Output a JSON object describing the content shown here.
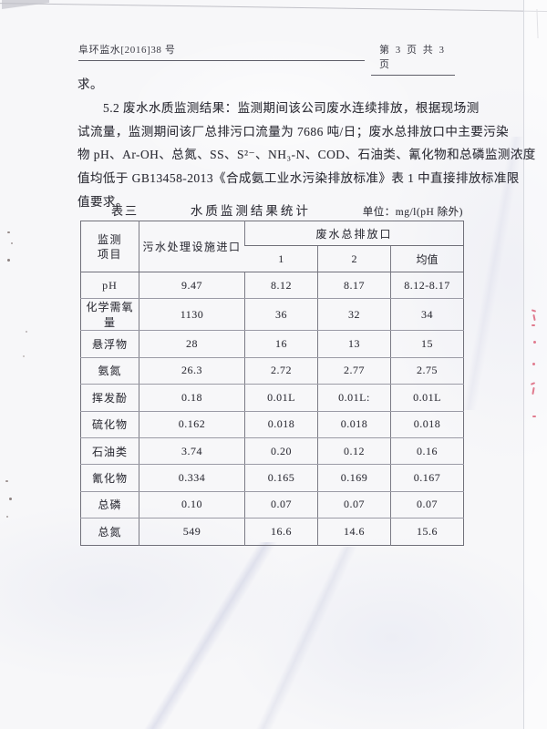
{
  "header": {
    "left": "阜环监水[2016]38 号",
    "right": "第 3 页 共 3 页"
  },
  "paragraph_lines": [
    "求。",
    "5.2 废水水质监测结果：监测期间该公司废水连续排放，根据现场测",
    "试流量，监测期间该厂总排污口流量为 7686 吨/日；废水总排放口中主要污染",
    "物 pH、Ar-OH、总氮、SS、S²⁻、NH₃-N、COD、石油类、氰化物和总磷监测浓度",
    "值均低于 GB13458-2013《合成氨工业水污染排放标准》表 1 中直接排放标准限",
    "值要求。"
  ],
  "table": {
    "caption": {
      "label": "表三",
      "title": "水质监测结果统计",
      "unit": "单位：mg/l(pH 除外)"
    },
    "header": {
      "item_line1": "监测",
      "item_line2": "项目",
      "inlet": "污水处理设施进口",
      "outlet_group": "废水总排放口",
      "sub": [
        "1",
        "2",
        "均值"
      ]
    },
    "rows": [
      {
        "item": "pH",
        "inlet": "9.47",
        "o1": "8.12",
        "o2": "8.17",
        "avg": "8.12-8.17"
      },
      {
        "item": "化学需氧量",
        "inlet": "1130",
        "o1": "36",
        "o2": "32",
        "avg": "34"
      },
      {
        "item": "悬浮物",
        "inlet": "28",
        "o1": "16",
        "o2": "13",
        "avg": "15"
      },
      {
        "item": "氨氮",
        "inlet": "26.3",
        "o1": "2.72",
        "o2": "2.77",
        "avg": "2.75"
      },
      {
        "item": "挥发酚",
        "inlet": "0.18",
        "o1": "0.01L",
        "o2": "0.01L:",
        "avg": "0.01L"
      },
      {
        "item": "硫化物",
        "inlet": "0.162",
        "o1": "0.018",
        "o2": "0.018",
        "avg": "0.018"
      },
      {
        "item": "石油类",
        "inlet": "3.74",
        "o1": "0.20",
        "o2": "0.12",
        "avg": "0.16"
      },
      {
        "item": "氰化物",
        "inlet": "0.334",
        "o1": "0.165",
        "o2": "0.169",
        "avg": "0.167"
      },
      {
        "item": "总磷",
        "inlet": "0.10",
        "o1": "0.07",
        "o2": "0.07",
        "avg": "0.07"
      },
      {
        "item": "总氮",
        "inlet": "549",
        "o1": "16.6",
        "o2": "14.6",
        "avg": "15.6"
      }
    ]
  }
}
